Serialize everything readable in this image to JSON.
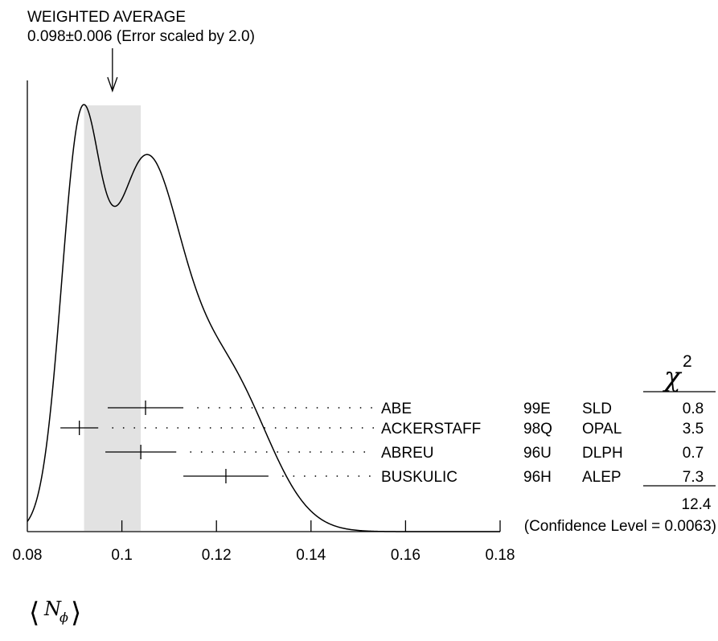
{
  "chart_data": {
    "type": "scatter",
    "title": "WEIGHTED AVERAGE",
    "subtitle": "0.098±0.006 (Error scaled by 2.0)",
    "average": {
      "value": 0.098,
      "error": 0.006
    },
    "xlabel": {
      "bracket_left": "⟨",
      "symbol": "N",
      "subscript": "ϕ",
      "bracket_right": "⟩"
    },
    "xlim": [
      0.08,
      0.18
    ],
    "xticks": [
      "0.08",
      "0.1",
      "0.12",
      "0.14",
      "0.16",
      "0.18"
    ],
    "measurements": [
      {
        "author": "ABE",
        "ref": "99E",
        "experiment": "SLD",
        "value": 0.105,
        "error": 0.008,
        "chi2": "0.8"
      },
      {
        "author": "ACKERSTAFF",
        "ref": "98Q",
        "experiment": "OPAL",
        "value": 0.091,
        "error": 0.004,
        "chi2": "3.5"
      },
      {
        "author": "ABREU",
        "ref": "96U",
        "experiment": "DLPH",
        "value": 0.104,
        "error": 0.0075,
        "chi2": "0.7"
      },
      {
        "author": "BUSKULIC",
        "ref": "96H",
        "experiment": "ALEP",
        "value": 0.122,
        "error": 0.009,
        "chi2": "7.3"
      }
    ],
    "chi2_header": {
      "symbol": "χ",
      "superscript": "2"
    },
    "chi2_total": "12.4",
    "confidence_level": "(Confidence Level = 0.0063)",
    "ideogram_color": "#000000",
    "band_color": "#e2e2e2"
  }
}
